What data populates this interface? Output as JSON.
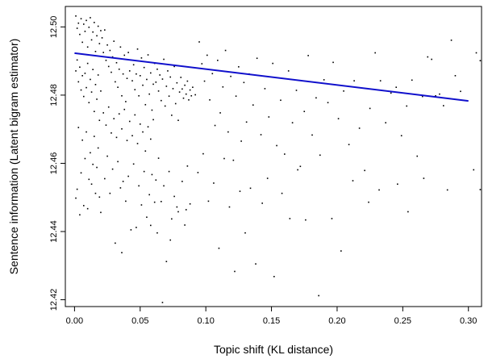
{
  "chart_data": {
    "type": "scatter",
    "title": "",
    "xlabel": "Topic shift (KL distance)",
    "ylabel": "Sentence information (Latent bigram estimator)",
    "xlim": [
      -0.007,
      0.31
    ],
    "ylim": [
      12.418,
      12.506
    ],
    "x_ticks": [
      0.0,
      0.05,
      0.1,
      0.15,
      0.2,
      0.25,
      0.3
    ],
    "x_tick_labels": [
      "0.00",
      "0.05",
      "0.10",
      "0.15",
      "0.20",
      "0.25",
      "0.30"
    ],
    "y_ticks": [
      12.42,
      12.44,
      12.46,
      12.48,
      12.5
    ],
    "y_tick_labels": [
      "12.42",
      "12.44",
      "12.46",
      "12.48",
      "12.50"
    ],
    "grid": false,
    "legend": "none",
    "point_color": "#000000",
    "fit_line_color": "#1010cc",
    "fit_line": {
      "x": [
        0.0,
        0.3
      ],
      "y": [
        12.4923,
        12.4783
      ]
    },
    "series": [
      {
        "points": [
          [
            0.001,
            12.5032
          ],
          [
            0.002,
            12.4996
          ],
          [
            0.003,
            12.5011
          ],
          [
            0.004,
            12.4978
          ],
          [
            0.005,
            12.5024
          ],
          [
            0.006,
            12.4955
          ],
          [
            0.007,
            12.5008
          ],
          [
            0.008,
            12.4987
          ],
          [
            0.009,
            12.5019
          ],
          [
            0.01,
            12.4941
          ],
          [
            0.011,
            12.4999
          ],
          [
            0.012,
            12.5027
          ],
          [
            0.013,
            12.4962
          ],
          [
            0.014,
            12.4985
          ],
          [
            0.015,
            12.5013
          ],
          [
            0.016,
            12.4928
          ],
          [
            0.017,
            12.4974
          ],
          [
            0.018,
            12.5002
          ],
          [
            0.019,
            12.4951
          ],
          [
            0.02,
            12.4989
          ],
          [
            0.001,
            12.4871
          ],
          [
            0.002,
            12.4903
          ],
          [
            0.003,
            12.4839
          ],
          [
            0.004,
            12.4882
          ],
          [
            0.005,
            12.4815
          ],
          [
            0.006,
            12.4857
          ],
          [
            0.007,
            12.4796
          ],
          [
            0.008,
            12.4864
          ],
          [
            0.009,
            12.4822
          ],
          [
            0.01,
            12.4893
          ],
          [
            0.011,
            12.4778
          ],
          [
            0.012,
            12.4846
          ],
          [
            0.013,
            12.4809
          ],
          [
            0.014,
            12.4875
          ],
          [
            0.015,
            12.4752
          ],
          [
            0.016,
            12.4831
          ],
          [
            0.017,
            12.4788
          ],
          [
            0.018,
            12.4859
          ],
          [
            0.019,
            12.4726
          ],
          [
            0.02,
            12.4812
          ],
          [
            0.021,
            12.4968
          ],
          [
            0.022,
            12.4925
          ],
          [
            0.023,
            12.4991
          ],
          [
            0.024,
            12.4902
          ],
          [
            0.025,
            12.4947
          ],
          [
            0.026,
            12.4884
          ],
          [
            0.027,
            12.4931
          ],
          [
            0.028,
            12.4867
          ],
          [
            0.029,
            12.4912
          ],
          [
            0.03,
            12.4958
          ],
          [
            0.031,
            12.4839
          ],
          [
            0.032,
            12.4895
          ],
          [
            0.033,
            12.4823
          ],
          [
            0.034,
            12.4876
          ],
          [
            0.035,
            12.4941
          ],
          [
            0.036,
            12.4798
          ],
          [
            0.037,
            12.4862
          ],
          [
            0.038,
            12.4917
          ],
          [
            0.039,
            12.4781
          ],
          [
            0.04,
            12.4849
          ],
          [
            0.022,
            12.4748
          ],
          [
            0.024,
            12.4712
          ],
          [
            0.026,
            12.4765
          ],
          [
            0.028,
            12.4689
          ],
          [
            0.03,
            12.4731
          ],
          [
            0.032,
            12.4676
          ],
          [
            0.034,
            12.4745
          ],
          [
            0.036,
            12.4701
          ],
          [
            0.038,
            12.4758
          ],
          [
            0.04,
            12.4667
          ],
          [
            0.041,
            12.4925
          ],
          [
            0.042,
            12.4871
          ],
          [
            0.043,
            12.4903
          ],
          [
            0.044,
            12.4842
          ],
          [
            0.045,
            12.4889
          ],
          [
            0.046,
            12.4816
          ],
          [
            0.047,
            12.4862
          ],
          [
            0.048,
            12.4935
          ],
          [
            0.049,
            12.4798
          ],
          [
            0.05,
            12.4857
          ],
          [
            0.051,
            12.4909
          ],
          [
            0.052,
            12.4829
          ],
          [
            0.053,
            12.4881
          ],
          [
            0.054,
            12.4772
          ],
          [
            0.055,
            12.4846
          ],
          [
            0.056,
            12.4918
          ],
          [
            0.057,
            12.4803
          ],
          [
            0.058,
            12.4865
          ],
          [
            0.059,
            12.4756
          ],
          [
            0.06,
            12.4832
          ],
          [
            0.042,
            12.4723
          ],
          [
            0.044,
            12.4681
          ],
          [
            0.046,
            12.4742
          ],
          [
            0.048,
            12.4658
          ],
          [
            0.05,
            12.4715
          ],
          [
            0.052,
            12.4692
          ],
          [
            0.054,
            12.4636
          ],
          [
            0.056,
            12.4707
          ],
          [
            0.058,
            12.4671
          ],
          [
            0.06,
            12.4728
          ],
          [
            0.061,
            12.4893
          ],
          [
            0.062,
            12.4838
          ],
          [
            0.063,
            12.4876
          ],
          [
            0.064,
            12.4812
          ],
          [
            0.065,
            12.4859
          ],
          [
            0.066,
            12.4784
          ],
          [
            0.067,
            12.4847
          ],
          [
            0.068,
            12.4905
          ],
          [
            0.069,
            12.4768
          ],
          [
            0.07,
            12.4826
          ],
          [
            0.071,
            12.4871
          ],
          [
            0.072,
            12.4797
          ],
          [
            0.073,
            12.4853
          ],
          [
            0.074,
            12.4741
          ],
          [
            0.075,
            12.4819
          ],
          [
            0.076,
            12.4884
          ],
          [
            0.077,
            12.4775
          ],
          [
            0.078,
            12.4836
          ],
          [
            0.079,
            12.4726
          ],
          [
            0.08,
            12.4809
          ],
          [
            0.081,
            12.4852
          ],
          [
            0.082,
            12.4818
          ],
          [
            0.083,
            12.4791
          ],
          [
            0.084,
            12.4829
          ],
          [
            0.085,
            12.4803
          ],
          [
            0.086,
            12.4841
          ],
          [
            0.087,
            12.4786
          ],
          [
            0.088,
            12.4815
          ],
          [
            0.089,
            12.4798
          ],
          [
            0.09,
            12.4823
          ],
          [
            0.003,
            12.4705
          ],
          [
            0.006,
            12.4668
          ],
          [
            0.009,
            12.4692
          ],
          [
            0.012,
            12.4631
          ],
          [
            0.015,
            12.4679
          ],
          [
            0.018,
            12.4645
          ],
          [
            0.008,
            12.4614
          ],
          [
            0.014,
            12.4597
          ],
          [
            0.005,
            12.4572
          ],
          [
            0.011,
            12.4553
          ],
          [
            0.017,
            12.4588
          ],
          [
            0.002,
            12.4524
          ],
          [
            0.019,
            12.4501
          ],
          [
            0.007,
            12.4476
          ],
          [
            0.013,
            12.4539
          ],
          [
            0.004,
            12.4449
          ],
          [
            0.016,
            12.4512
          ],
          [
            0.01,
            12.4467
          ],
          [
            0.001,
            12.4498
          ],
          [
            0.02,
            12.4456
          ],
          [
            0.025,
            12.4621
          ],
          [
            0.029,
            12.4583
          ],
          [
            0.033,
            12.4605
          ],
          [
            0.037,
            12.4547
          ],
          [
            0.027,
            12.4512
          ],
          [
            0.035,
            12.4528
          ],
          [
            0.031,
            12.4366
          ],
          [
            0.039,
            12.4489
          ],
          [
            0.023,
            12.4555
          ],
          [
            0.041,
            12.4562
          ],
          [
            0.045,
            12.4598
          ],
          [
            0.049,
            12.4534
          ],
          [
            0.053,
            12.4576
          ],
          [
            0.057,
            12.4508
          ],
          [
            0.047,
            12.4412
          ],
          [
            0.051,
            12.4478
          ],
          [
            0.055,
            12.4442
          ],
          [
            0.059,
            12.4567
          ],
          [
            0.043,
            12.4405
          ],
          [
            0.062,
            12.4551
          ],
          [
            0.064,
            12.4615
          ],
          [
            0.066,
            12.4488
          ],
          [
            0.068,
            12.4534
          ],
          [
            0.07,
            12.4312
          ],
          [
            0.072,
            12.4576
          ],
          [
            0.074,
            12.4437
          ],
          [
            0.076,
            12.4503
          ],
          [
            0.078,
            12.4472
          ],
          [
            0.067,
            12.4192
          ],
          [
            0.082,
            12.4547
          ],
          [
            0.084,
            12.4419
          ],
          [
            0.086,
            12.4592
          ],
          [
            0.088,
            12.4481
          ],
          [
            0.063,
            12.4396
          ],
          [
            0.073,
            12.4375
          ],
          [
            0.085,
            12.4464
          ],
          [
            0.079,
            12.4458
          ],
          [
            0.036,
            12.4338
          ],
          [
            0.058,
            12.4418
          ],
          [
            0.061,
            12.4486
          ],
          [
            0.092,
            12.4801
          ],
          [
            0.095,
            12.4956
          ],
          [
            0.097,
            12.4892
          ],
          [
            0.099,
            12.4841
          ],
          [
            0.101,
            12.4917
          ],
          [
            0.103,
            12.4786
          ],
          [
            0.105,
            12.4863
          ],
          [
            0.107,
            12.4711
          ],
          [
            0.109,
            12.4902
          ],
          [
            0.111,
            12.4748
          ],
          [
            0.113,
            12.4824
          ],
          [
            0.115,
            12.4931
          ],
          [
            0.117,
            12.4692
          ],
          [
            0.119,
            12.4855
          ],
          [
            0.121,
            12.4609
          ],
          [
            0.123,
            12.4797
          ],
          [
            0.125,
            12.4883
          ],
          [
            0.127,
            12.4665
          ],
          [
            0.129,
            12.4837
          ],
          [
            0.131,
            12.4721
          ],
          [
            0.094,
            12.4573
          ],
          [
            0.098,
            12.4628
          ],
          [
            0.102,
            12.4489
          ],
          [
            0.106,
            12.4542
          ],
          [
            0.11,
            12.4351
          ],
          [
            0.114,
            12.4614
          ],
          [
            0.118,
            12.4472
          ],
          [
            0.122,
            12.4283
          ],
          [
            0.126,
            12.4518
          ],
          [
            0.13,
            12.4396
          ],
          [
            0.133,
            12.4862
          ],
          [
            0.136,
            12.4771
          ],
          [
            0.139,
            12.4908
          ],
          [
            0.142,
            12.4684
          ],
          [
            0.145,
            12.4819
          ],
          [
            0.148,
            12.4736
          ],
          [
            0.151,
            12.4893
          ],
          [
            0.154,
            12.4652
          ],
          [
            0.157,
            12.4785
          ],
          [
            0.16,
            12.4627
          ],
          [
            0.163,
            12.4871
          ],
          [
            0.166,
            12.4719
          ],
          [
            0.169,
            12.4814
          ],
          [
            0.172,
            12.4591
          ],
          [
            0.175,
            12.4752
          ],
          [
            0.178,
            12.4916
          ],
          [
            0.181,
            12.4683
          ],
          [
            0.184,
            12.4792
          ],
          [
            0.187,
            12.4624
          ],
          [
            0.19,
            12.4845
          ],
          [
            0.134,
            12.4527
          ],
          [
            0.138,
            12.4305
          ],
          [
            0.143,
            12.4483
          ],
          [
            0.147,
            12.4556
          ],
          [
            0.152,
            12.4268
          ],
          [
            0.158,
            12.4512
          ],
          [
            0.164,
            12.4438
          ],
          [
            0.17,
            12.4581
          ],
          [
            0.176,
            12.4434
          ],
          [
            0.186,
            12.4212
          ],
          [
            0.193,
            12.4778
          ],
          [
            0.197,
            12.4896
          ],
          [
            0.201,
            12.4731
          ],
          [
            0.205,
            12.4812
          ],
          [
            0.209,
            12.4655
          ],
          [
            0.213,
            12.4842
          ],
          [
            0.217,
            12.4703
          ],
          [
            0.221,
            12.4579
          ],
          [
            0.225,
            12.4761
          ],
          [
            0.229,
            12.4924
          ],
          [
            0.233,
            12.4842
          ],
          [
            0.237,
            12.4719
          ],
          [
            0.241,
            12.4806
          ],
          [
            0.245,
            12.4823
          ],
          [
            0.249,
            12.4681
          ],
          [
            0.253,
            12.4768
          ],
          [
            0.257,
            12.4844
          ],
          [
            0.261,
            12.4621
          ],
          [
            0.265,
            12.4796
          ],
          [
            0.269,
            12.4912
          ],
          [
            0.272,
            12.4905
          ],
          [
            0.275,
            12.4798
          ],
          [
            0.278,
            12.4803
          ],
          [
            0.281,
            12.4769
          ],
          [
            0.284,
            12.4522
          ],
          [
            0.287,
            12.4961
          ],
          [
            0.29,
            12.4857
          ],
          [
            0.294,
            12.4811
          ],
          [
            0.306,
            12.4924
          ],
          [
            0.309,
            12.4901
          ],
          [
            0.196,
            12.4438
          ],
          [
            0.203,
            12.4343
          ],
          [
            0.212,
            12.4549
          ],
          [
            0.224,
            12.4486
          ],
          [
            0.232,
            12.4522
          ],
          [
            0.246,
            12.4539
          ],
          [
            0.254,
            12.4458
          ],
          [
            0.266,
            12.4556
          ],
          [
            0.304,
            12.4581
          ],
          [
            0.309,
            12.4523
          ]
        ]
      }
    ]
  }
}
